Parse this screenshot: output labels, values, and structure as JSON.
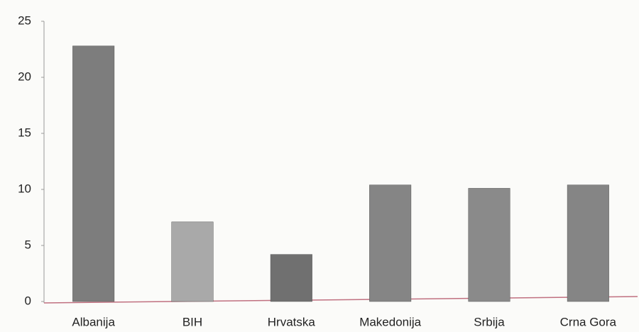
{
  "chart_data": {
    "type": "bar",
    "categories": [
      "Albanija",
      "BIH",
      "Hrvatska",
      "Makedonija",
      "Srbija",
      "Crna Gora"
    ],
    "values": [
      22.8,
      7.1,
      4.2,
      10.4,
      10.1,
      10.4
    ],
    "colors": [
      "#7d7d7d",
      "#a9a9a9",
      "#707070",
      "#858585",
      "#8a8a8a",
      "#858585"
    ],
    "ylim": [
      0,
      25
    ],
    "yticks": [
      0,
      5,
      10,
      15,
      20,
      25
    ],
    "grid": false
  }
}
